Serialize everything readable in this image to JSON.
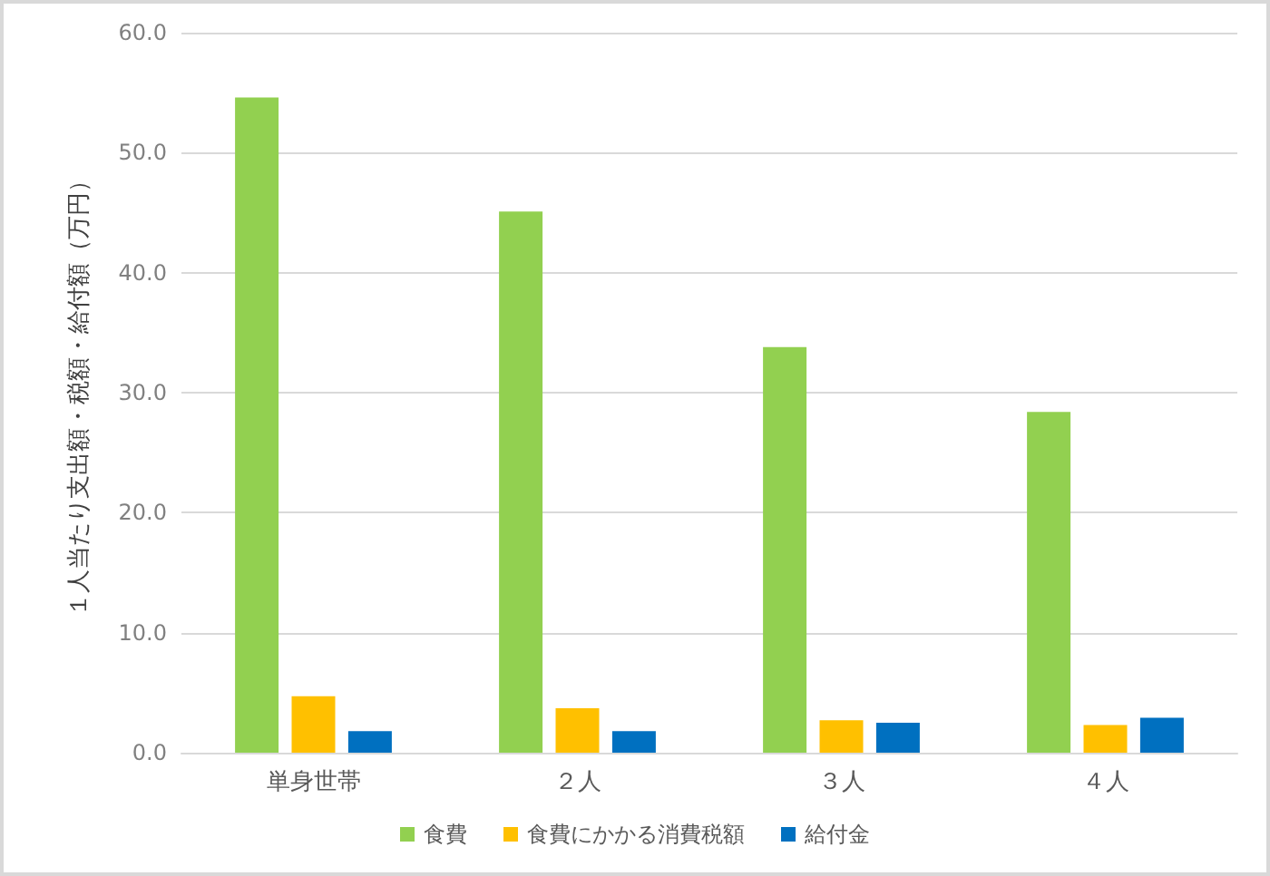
{
  "chart_data": {
    "type": "bar",
    "ylabel": "１人当たり支出額・税額・給付額（万円）",
    "categories": [
      "単身世帯",
      "２人",
      "３人",
      "４人"
    ],
    "series": [
      {
        "name": "食費",
        "color": "#92d050",
        "values": [
          54.6,
          45.1,
          33.8,
          28.4
        ]
      },
      {
        "name": "食費にかかる消費税額",
        "color": "#ffc000",
        "values": [
          4.7,
          3.7,
          2.7,
          2.3
        ]
      },
      {
        "name": "給付金",
        "color": "#0070c0",
        "values": [
          1.8,
          1.8,
          2.5,
          2.9
        ]
      }
    ],
    "ylim": [
      0,
      60
    ],
    "yticks": [
      {
        "value": 0,
        "label": "0.0"
      },
      {
        "value": 10,
        "label": "10.0"
      },
      {
        "value": 20,
        "label": "20.0"
      },
      {
        "value": 30,
        "label": "30.0"
      },
      {
        "value": 40,
        "label": "40.0"
      },
      {
        "value": 50,
        "label": "50.0"
      },
      {
        "value": 60,
        "label": "60.0"
      }
    ],
    "grid": "y",
    "legend": "bottom"
  }
}
